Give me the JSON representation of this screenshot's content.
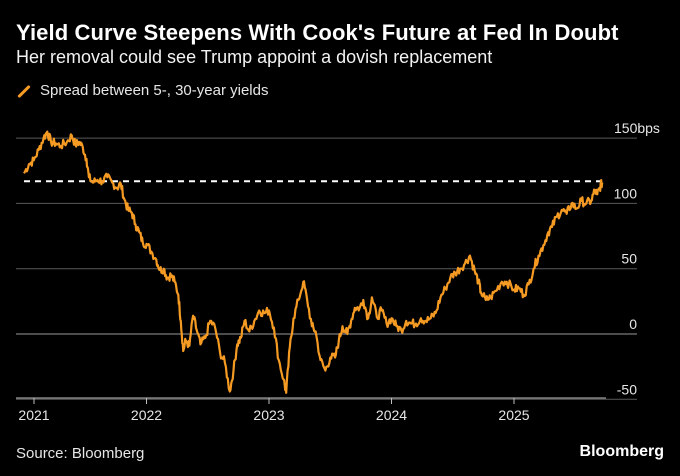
{
  "title": "Yield Curve Steepens With Cook's Future at Fed In Doubt",
  "subtitle": "Her removal could see Trump appoint a dovish replacement",
  "source": "Source: Bloomberg",
  "brand": "Bloomberg",
  "chart_data": {
    "type": "line",
    "legend": "Spread between 5-, 30-year yields",
    "y_unit_label": "150bps",
    "ylim": [
      -55,
      160
    ],
    "xlim": [
      2021.0,
      2025.72
    ],
    "y_ticks": [
      {
        "value": 150,
        "label": "150bps"
      },
      {
        "value": 100,
        "label": "100"
      },
      {
        "value": 50,
        "label": "50"
      },
      {
        "value": 0,
        "label": "0"
      },
      {
        "value": -50,
        "label": "-50"
      }
    ],
    "x_ticks": [
      {
        "value": 2021,
        "label": "2021"
      },
      {
        "value": 2022,
        "label": "2022"
      },
      {
        "value": 2023,
        "label": "2023"
      },
      {
        "value": 2024,
        "label": "2024"
      },
      {
        "value": 2025,
        "label": "2025"
      }
    ],
    "reference_line": {
      "value": 117,
      "style": "dashed",
      "color": "#ffffff"
    },
    "color": "#f59a23",
    "grid": "horizontal",
    "series": [
      {
        "name": "Spread between 5-, 30-year yields",
        "points": [
          [
            2021.0,
            123
          ],
          [
            2021.04,
            130
          ],
          [
            2021.08,
            133
          ],
          [
            2021.12,
            141
          ],
          [
            2021.16,
            150
          ],
          [
            2021.19,
            155
          ],
          [
            2021.22,
            147
          ],
          [
            2021.26,
            146
          ],
          [
            2021.3,
            144
          ],
          [
            2021.35,
            147
          ],
          [
            2021.39,
            152
          ],
          [
            2021.42,
            145
          ],
          [
            2021.45,
            147
          ],
          [
            2021.48,
            143
          ],
          [
            2021.51,
            134
          ],
          [
            2021.53,
            120
          ],
          [
            2021.56,
            116
          ],
          [
            2021.6,
            118
          ],
          [
            2021.64,
            117
          ],
          [
            2021.68,
            120
          ],
          [
            2021.72,
            116
          ],
          [
            2021.76,
            112
          ],
          [
            2021.79,
            115
          ],
          [
            2021.82,
            103
          ],
          [
            2021.85,
            95
          ],
          [
            2021.88,
            93
          ],
          [
            2021.91,
            84
          ],
          [
            2021.94,
            78
          ],
          [
            2021.97,
            70
          ],
          [
            2022.0,
            69
          ],
          [
            2022.04,
            63
          ],
          [
            2022.08,
            57
          ],
          [
            2022.11,
            49
          ],
          [
            2022.14,
            50
          ],
          [
            2022.17,
            43
          ],
          [
            2022.2,
            45
          ],
          [
            2022.23,
            40
          ],
          [
            2022.26,
            30
          ],
          [
            2022.28,
            10
          ],
          [
            2022.3,
            -13
          ],
          [
            2022.32,
            -5
          ],
          [
            2022.35,
            -9
          ],
          [
            2022.38,
            14
          ],
          [
            2022.41,
            3
          ],
          [
            2022.44,
            -8
          ],
          [
            2022.48,
            -3
          ],
          [
            2022.52,
            10
          ],
          [
            2022.56,
            5
          ],
          [
            2022.6,
            -14
          ],
          [
            2022.64,
            -22
          ],
          [
            2022.68,
            -44
          ],
          [
            2022.71,
            -28
          ],
          [
            2022.74,
            -8
          ],
          [
            2022.77,
            -3
          ],
          [
            2022.8,
            10
          ],
          [
            2022.84,
            2
          ],
          [
            2022.88,
            10
          ],
          [
            2022.92,
            18
          ],
          [
            2022.96,
            16
          ],
          [
            2023.0,
            18
          ],
          [
            2023.04,
            5
          ],
          [
            2023.08,
            -20
          ],
          [
            2023.12,
            -35
          ],
          [
            2023.14,
            -45
          ],
          [
            2023.17,
            -10
          ],
          [
            2023.2,
            12
          ],
          [
            2023.24,
            26
          ],
          [
            2023.28,
            40
          ],
          [
            2023.31,
            27
          ],
          [
            2023.35,
            6
          ],
          [
            2023.38,
            2
          ],
          [
            2023.42,
            -20
          ],
          [
            2023.46,
            -28
          ],
          [
            2023.5,
            -18
          ],
          [
            2023.54,
            -18
          ],
          [
            2023.57,
            -5
          ],
          [
            2023.6,
            6
          ],
          [
            2023.64,
            0
          ],
          [
            2023.67,
            10
          ],
          [
            2023.7,
            20
          ],
          [
            2023.74,
            20
          ],
          [
            2023.77,
            26
          ],
          [
            2023.81,
            12
          ],
          [
            2023.84,
            28
          ],
          [
            2023.88,
            13
          ],
          [
            2023.92,
            18
          ],
          [
            2023.96,
            8
          ],
          [
            2024.0,
            12
          ],
          [
            2024.04,
            6
          ],
          [
            2024.08,
            3
          ],
          [
            2024.12,
            10
          ],
          [
            2024.16,
            8
          ],
          [
            2024.2,
            8
          ],
          [
            2024.24,
            12
          ],
          [
            2024.28,
            10
          ],
          [
            2024.32,
            12
          ],
          [
            2024.36,
            16
          ],
          [
            2024.4,
            28
          ],
          [
            2024.44,
            35
          ],
          [
            2024.48,
            43
          ],
          [
            2024.52,
            47
          ],
          [
            2024.56,
            50
          ],
          [
            2024.6,
            54
          ],
          [
            2024.64,
            60
          ],
          [
            2024.68,
            48
          ],
          [
            2024.71,
            40
          ],
          [
            2024.73,
            32
          ],
          [
            2024.77,
            26
          ],
          [
            2024.81,
            28
          ],
          [
            2024.85,
            33
          ],
          [
            2024.9,
            40
          ],
          [
            2024.94,
            40
          ],
          [
            2025.0,
            34
          ],
          [
            2025.04,
            35
          ],
          [
            2025.08,
            30
          ],
          [
            2025.12,
            38
          ],
          [
            2025.16,
            50
          ],
          [
            2025.2,
            60
          ],
          [
            2025.24,
            68
          ],
          [
            2025.28,
            78
          ],
          [
            2025.31,
            82
          ],
          [
            2025.35,
            90
          ],
          [
            2025.39,
            95
          ],
          [
            2025.43,
            92
          ],
          [
            2025.47,
            100
          ],
          [
            2025.51,
            96
          ],
          [
            2025.55,
            102
          ],
          [
            2025.59,
            100
          ],
          [
            2025.63,
            102
          ],
          [
            2025.66,
            110
          ],
          [
            2025.68,
            107
          ],
          [
            2025.7,
            112
          ],
          [
            2025.72,
            116
          ]
        ]
      }
    ]
  }
}
